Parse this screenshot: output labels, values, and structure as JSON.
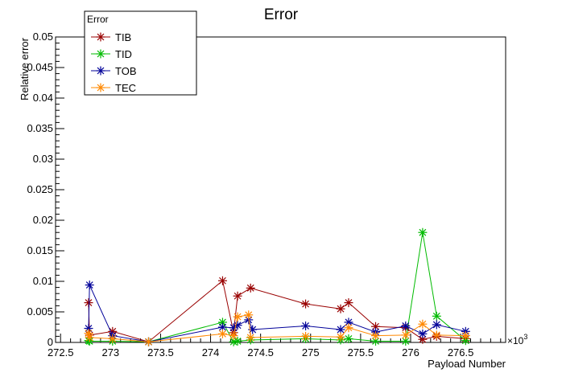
{
  "chart_data": {
    "type": "line",
    "title": "Error",
    "xlabel": "Payload Number",
    "ylabel": "Relative error",
    "x_multiplier_label": "×10",
    "x_multiplier_exp": "3",
    "xlim": [
      272.45,
      276.95
    ],
    "ylim": [
      0,
      0.05
    ],
    "x_ticks": [
      {
        "value": 272.5,
        "label": "272.5"
      },
      {
        "value": 273,
        "label": "273"
      },
      {
        "value": 273.5,
        "label": "273.5"
      },
      {
        "value": 274,
        "label": "274"
      },
      {
        "value": 274.5,
        "label": "274.5"
      },
      {
        "value": 275,
        "label": "275"
      },
      {
        "value": 275.5,
        "label": "275.5"
      },
      {
        "value": 276,
        "label": "276"
      },
      {
        "value": 276.5,
        "label": "276.5"
      }
    ],
    "y_ticks": [
      {
        "value": 0,
        "label": "0"
      },
      {
        "value": 0.005,
        "label": "0.005"
      },
      {
        "value": 0.01,
        "label": "0.01"
      },
      {
        "value": 0.015,
        "label": "0.015"
      },
      {
        "value": 0.02,
        "label": "0.02"
      },
      {
        "value": 0.025,
        "label": "0.025"
      },
      {
        "value": 0.03,
        "label": "0.03"
      },
      {
        "value": 0.035,
        "label": "0.035"
      },
      {
        "value": 0.04,
        "label": "0.04"
      },
      {
        "value": 0.045,
        "label": "0.045"
      },
      {
        "value": 0.05,
        "label": "0.05"
      }
    ],
    "legend": {
      "title": "Error",
      "placement": "top-left"
    },
    "grid": false,
    "series": [
      {
        "name": "TIB",
        "color": "#990000",
        "x": [
          272.78,
          272.79,
          273.02,
          273.38,
          274.12,
          274.23,
          274.27,
          274.4,
          274.95,
          275.3,
          275.38,
          275.65,
          275.95,
          276.12,
          276.26,
          276.55
        ],
        "y": [
          0.0065,
          0.0012,
          0.0018,
          0.0001,
          0.0101,
          0.0016,
          0.0076,
          0.0089,
          0.0063,
          0.0055,
          0.0065,
          0.0026,
          0.0024,
          0.0005,
          0.001,
          0.0006
        ]
      },
      {
        "name": "TID",
        "color": "#00bb00",
        "x": [
          272.78,
          272.79,
          273.02,
          273.38,
          274.12,
          274.23,
          274.27,
          274.4,
          274.95,
          275.3,
          275.38,
          275.65,
          275.95,
          276.12,
          276.26,
          276.55
        ],
        "y": [
          0.0003,
          0.0002,
          0.0002,
          0.0001,
          0.0033,
          0.0001,
          0.0002,
          0.0004,
          0.0006,
          0.0004,
          0.0006,
          0.0002,
          0.0002,
          0.018,
          0.0043,
          0.0003
        ]
      },
      {
        "name": "TOB",
        "color": "#000099",
        "x": [
          272.78,
          272.79,
          273.02,
          273.38,
          274.12,
          274.23,
          274.27,
          274.38,
          274.42,
          274.95,
          275.3,
          275.38,
          275.65,
          275.95,
          276.12,
          276.26,
          276.55
        ],
        "y": [
          0.0023,
          0.0094,
          0.0011,
          0.0001,
          0.0025,
          0.0024,
          0.0028,
          0.0037,
          0.0021,
          0.0027,
          0.0021,
          0.0033,
          0.0017,
          0.0027,
          0.0014,
          0.0029,
          0.0018
        ]
      },
      {
        "name": "TEC",
        "color": "#ff8800",
        "x": [
          272.78,
          272.79,
          273.02,
          273.38,
          274.12,
          274.23,
          274.27,
          274.38,
          274.4,
          274.95,
          275.3,
          275.38,
          275.65,
          275.95,
          276.12,
          276.26,
          276.55
        ],
        "y": [
          0.0015,
          0.0008,
          0.0006,
          0.0001,
          0.0014,
          0.0011,
          0.0042,
          0.0045,
          0.0008,
          0.001,
          0.0009,
          0.0024,
          0.0011,
          0.0012,
          0.003,
          0.0012,
          0.0011
        ]
      }
    ]
  }
}
